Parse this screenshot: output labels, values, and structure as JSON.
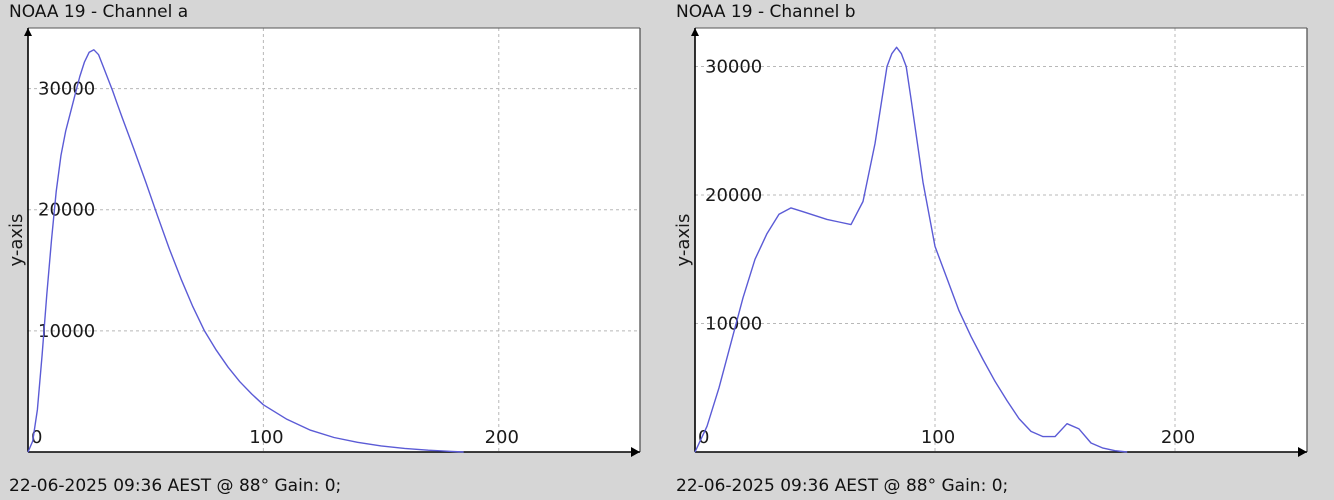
{
  "chart_data": [
    {
      "type": "line",
      "title": "NOAA 19 - Channel a",
      "footer": "22-06-2025 09:36 AEST @ 88° Gain: 0;",
      "ylabel": "y-axis",
      "xlabel": "",
      "xlim": [
        0,
        260
      ],
      "ylim": [
        0,
        35000
      ],
      "xticks": [
        0,
        100,
        200
      ],
      "yticks": [
        10000,
        20000,
        30000
      ],
      "grid": true,
      "color": "#5b5bd6",
      "series": [
        {
          "x": [
            0,
            2,
            4,
            6,
            8,
            10,
            12,
            14,
            16,
            18,
            20,
            22,
            24,
            26,
            28,
            30,
            32,
            34,
            36,
            38,
            40,
            45,
            50,
            55,
            60,
            65,
            70,
            75,
            80,
            85,
            90,
            95,
            100,
            110,
            120,
            130,
            140,
            150,
            160,
            170,
            180,
            185
          ],
          "y": [
            0,
            900,
            3500,
            8000,
            13000,
            17500,
            21500,
            24500,
            26500,
            28000,
            29500,
            31000,
            32200,
            33000,
            33200,
            32800,
            31800,
            30800,
            29800,
            28700,
            27600,
            25000,
            22300,
            19500,
            16800,
            14300,
            12000,
            10000,
            8400,
            7000,
            5800,
            4800,
            3900,
            2700,
            1800,
            1200,
            800,
            500,
            300,
            150,
            50,
            0
          ]
        }
      ]
    },
    {
      "type": "line",
      "title": "NOAA 19 - Channel b",
      "footer": "22-06-2025 09:36 AEST @ 88° Gain: 0;",
      "ylabel": "y-axis",
      "xlabel": "",
      "xlim": [
        0,
        255
      ],
      "ylim": [
        0,
        33000
      ],
      "xticks": [
        0,
        100,
        200
      ],
      "yticks": [
        10000,
        20000,
        30000
      ],
      "grid": true,
      "color": "#5b5bd6",
      "series": [
        {
          "x": [
            0,
            5,
            10,
            15,
            20,
            25,
            30,
            35,
            40,
            45,
            50,
            55,
            60,
            65,
            70,
            75,
            80,
            82,
            84,
            86,
            88,
            90,
            95,
            100,
            105,
            110,
            115,
            120,
            125,
            130,
            135,
            140,
            145,
            150,
            155,
            160,
            165,
            170,
            175,
            180
          ],
          "y": [
            0,
            2000,
            5000,
            8500,
            12000,
            15000,
            17000,
            18500,
            19000,
            18700,
            18400,
            18100,
            17900,
            17700,
            19500,
            24000,
            30000,
            31000,
            31500,
            31000,
            30000,
            27500,
            21000,
            16000,
            13500,
            11000,
            9000,
            7200,
            5500,
            4000,
            2600,
            1600,
            1200,
            1200,
            2200,
            1800,
            700,
            300,
            100,
            0
          ]
        }
      ]
    }
  ]
}
